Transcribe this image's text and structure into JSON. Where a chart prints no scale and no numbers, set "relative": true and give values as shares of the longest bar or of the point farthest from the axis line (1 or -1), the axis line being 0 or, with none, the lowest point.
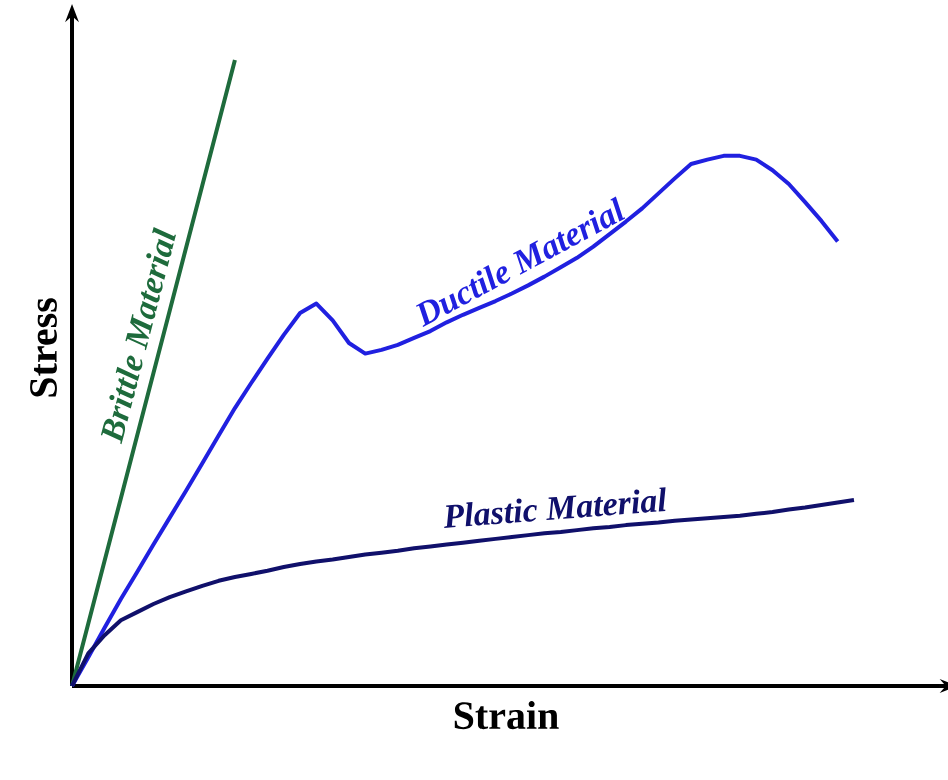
{
  "chart_data": {
    "type": "line",
    "relative": true,
    "xlabel": "Strain",
    "ylabel": "Stress",
    "legend": false,
    "marker": "none",
    "line_style": "solid",
    "categories": [
      null,
      null,
      null,
      null,
      null,
      null,
      null,
      null,
      null,
      null,
      null,
      null,
      null,
      null,
      null,
      null,
      null,
      null,
      null,
      null,
      null,
      null,
      null,
      null,
      null,
      null,
      null,
      null,
      null,
      null,
      null,
      null,
      null,
      null,
      null,
      null,
      null,
      null,
      null,
      null,
      null,
      null,
      null,
      null,
      null,
      null,
      null,
      null,
      null
    ],
    "series": [
      {
        "name": "Brittle Material",
        "color": "#1e6b3c",
        "values": [
          0,
          0.1,
          0.2,
          0.3,
          0.4,
          0.5,
          0.6,
          0.7,
          0.8,
          0.9,
          1.0,
          null,
          null,
          null,
          null,
          null,
          null,
          null,
          null,
          null,
          null,
          null,
          null,
          null,
          null,
          null,
          null,
          null,
          null,
          null,
          null,
          null,
          null,
          null,
          null,
          null,
          null,
          null,
          null,
          null,
          null,
          null,
          null,
          null,
          null,
          null,
          null,
          null,
          null
        ]
      },
      {
        "name": "Ductile Material",
        "color": "#2020e0",
        "values": [
          0,
          0.046,
          0.093,
          0.139,
          0.182,
          0.226,
          0.269,
          0.312,
          0.356,
          0.4,
          0.444,
          0.484,
          0.523,
          0.561,
          0.596,
          0.611,
          0.584,
          0.548,
          0.531,
          0.537,
          0.545,
          0.556,
          0.567,
          0.581,
          0.593,
          0.604,
          0.615,
          0.627,
          0.64,
          0.654,
          0.669,
          0.684,
          0.702,
          0.722,
          0.742,
          0.763,
          0.787,
          0.811,
          0.834,
          0.841,
          0.847,
          0.847,
          0.841,
          0.824,
          0.802,
          0.773,
          0.743,
          0.71,
          null
        ]
      },
      {
        "name": "Plastic Material",
        "color": "#10106b",
        "values": [
          0,
          0.052,
          0.081,
          0.105,
          0.118,
          0.131,
          0.142,
          0.151,
          0.16,
          0.168,
          0.174,
          0.179,
          0.184,
          0.19,
          0.195,
          0.199,
          0.202,
          0.206,
          0.21,
          0.213,
          0.216,
          0.22,
          0.223,
          0.226,
          0.229,
          0.232,
          0.235,
          0.238,
          0.241,
          0.244,
          0.246,
          0.249,
          0.252,
          0.254,
          0.257,
          0.259,
          0.261,
          0.264,
          0.266,
          0.268,
          0.27,
          0.272,
          0.275,
          0.278,
          0.282,
          0.285,
          0.289,
          0.293,
          0.297
        ]
      }
    ]
  }
}
